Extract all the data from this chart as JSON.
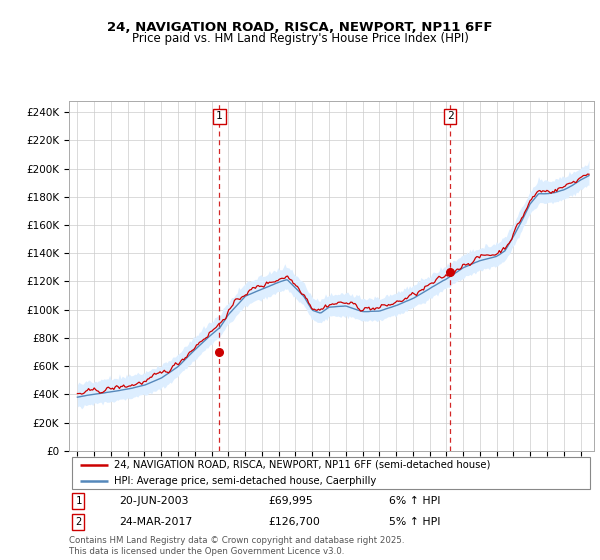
{
  "title": "24, NAVIGATION ROAD, RISCA, NEWPORT, NP11 6FF",
  "subtitle": "Price paid vs. HM Land Registry's House Price Index (HPI)",
  "ylabel_ticks": [
    "£0",
    "£20K",
    "£40K",
    "£60K",
    "£80K",
    "£100K",
    "£120K",
    "£140K",
    "£160K",
    "£180K",
    "£200K",
    "£220K",
    "£240K"
  ],
  "ytick_values": [
    0,
    20000,
    40000,
    60000,
    80000,
    100000,
    120000,
    140000,
    160000,
    180000,
    200000,
    220000,
    240000
  ],
  "ylim": [
    0,
    248000
  ],
  "xlim_start": 1994.5,
  "xlim_end": 2025.8,
  "red_line_color": "#cc0000",
  "blue_line_color": "#5588bb",
  "blue_fill_color": "#ddeeff",
  "purchase1_x": 2003.47,
  "purchase1_y": 69995,
  "purchase2_x": 2017.22,
  "purchase2_y": 126700,
  "legend_line1": "24, NAVIGATION ROAD, RISCA, NEWPORT, NP11 6FF (semi-detached house)",
  "legend_line2": "HPI: Average price, semi-detached house, Caerphilly",
  "purchase1_date": "20-JUN-2003",
  "purchase1_price": "£69,995",
  "purchase1_hpi": "6% ↑ HPI",
  "purchase2_date": "24-MAR-2017",
  "purchase2_price": "£126,700",
  "purchase2_hpi": "5% ↑ HPI",
  "footer": "Contains HM Land Registry data © Crown copyright and database right 2025.\nThis data is licensed under the Open Government Licence v3.0.",
  "background_color": "#ffffff",
  "grid_color": "#cccccc",
  "plot_bg_color": "#ffffff"
}
